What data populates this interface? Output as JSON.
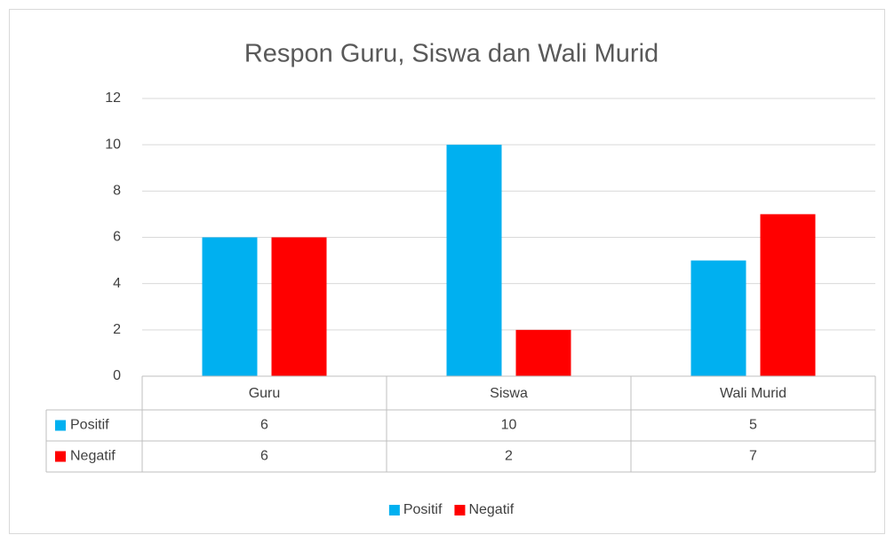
{
  "chart_data": {
    "type": "bar",
    "title": "Respon Guru, Siswa dan Wali Murid",
    "categories": [
      "Guru",
      "Siswa",
      "Wali Murid"
    ],
    "series": [
      {
        "name": "Positif",
        "color": "#00b0f0",
        "values": [
          6,
          10,
          5
        ]
      },
      {
        "name": "Negatif",
        "color": "#ff0000",
        "values": [
          6,
          2,
          7
        ]
      }
    ],
    "ylim": [
      0,
      12
    ],
    "yticks": [
      0,
      2,
      4,
      6,
      8,
      10,
      12
    ],
    "grid": true,
    "legend": "bottom",
    "data_table": true
  }
}
